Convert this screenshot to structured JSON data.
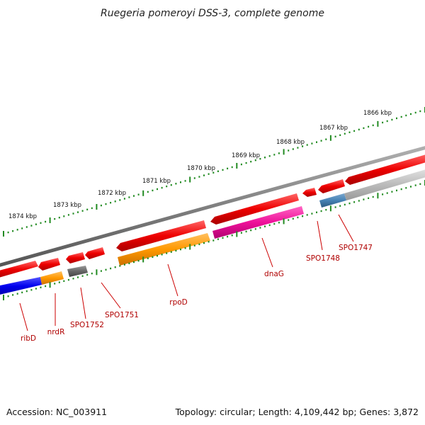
{
  "title": "Ruegeria pomeroyi DSS-3, complete genome",
  "accession_text": "Accession: NC_003911",
  "topology_text": "Topology: circular; Length: 4,109,442 bp; Genes: 3,872",
  "kbp_ticks": [
    {
      "label": "1874 kbp"
    },
    {
      "label": "1873 kbp"
    },
    {
      "label": "1872 kbp"
    },
    {
      "label": "1871 kbp"
    },
    {
      "label": "1870 kbp"
    },
    {
      "label": "1869 kbp"
    },
    {
      "label": "1868 kbp"
    },
    {
      "label": "1867 kbp"
    },
    {
      "label": "1866 kbp"
    }
  ],
  "gene_labels": [
    {
      "name": "ribD"
    },
    {
      "name": "nrdR"
    },
    {
      "name": "SPO1752"
    },
    {
      "name": "SPO1751"
    },
    {
      "name": "rpoD"
    },
    {
      "name": "dnaG"
    },
    {
      "name": "SPO1748"
    },
    {
      "name": "SPO1747"
    }
  ],
  "colors": {
    "backbone": "#808080",
    "cds_red": "#ee0000",
    "ribD": "#0000ee",
    "nrdR": "#ff9900",
    "SPO1752": "#666666",
    "rpoD": "#ff9900",
    "dnaG": "#ee1199",
    "SPO1747_a": "#4682b4",
    "SPO1747_b": "#bbbbbb",
    "ticks": "#228b22",
    "label": "#b00000"
  }
}
